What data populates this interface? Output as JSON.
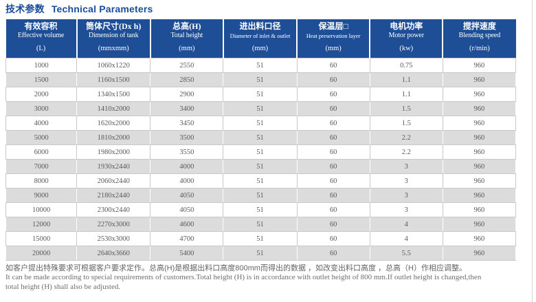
{
  "title": {
    "zh": "技术参数",
    "en": "Technical Parameters"
  },
  "table": {
    "columns": [
      {
        "zh": "有效容积",
        "en": "Effective volume",
        "unit": "(L)"
      },
      {
        "zh": "筒体尺寸(Dx h)",
        "en": "Dimension of tank",
        "unit": "(mmxmm)"
      },
      {
        "zh": "总高(H)",
        "en": "Total height",
        "unit": "(mm)"
      },
      {
        "zh": "进出料口径",
        "en": "Diameter of inlet & outlet",
        "unit": "(mm)"
      },
      {
        "zh": "保温层□",
        "en": "Heat preservation layer",
        "unit": "(mm)"
      },
      {
        "zh": "电机功率",
        "en": "Motor power",
        "unit": "(kw)"
      },
      {
        "zh": "搅拌速度",
        "en": "Blending speed",
        "unit": "(r/min)"
      }
    ],
    "rows": [
      [
        "1000",
        "1060x1220",
        "2550",
        "51",
        "60",
        "0.75",
        "960"
      ],
      [
        "1500",
        "1160x1500",
        "2850",
        "51",
        "60",
        "1.1",
        "960"
      ],
      [
        "2000",
        "1340x1500",
        "2900",
        "51",
        "60",
        "1.1",
        "960"
      ],
      [
        "3000",
        "1410x2000",
        "3400",
        "51",
        "60",
        "1.5",
        "960"
      ],
      [
        "4000",
        "1620x2000",
        "3450",
        "51",
        "60",
        "1.5",
        "960"
      ],
      [
        "5000",
        "1810x2000",
        "3500",
        "51",
        "60",
        "2.2",
        "960"
      ],
      [
        "6000",
        "1980x2000",
        "3550",
        "51",
        "60",
        "2.2",
        "960"
      ],
      [
        "7000",
        "1930x2440",
        "4000",
        "51",
        "60",
        "3",
        "960"
      ],
      [
        "8000",
        "2060x2440",
        "4000",
        "51",
        "60",
        "3",
        "960"
      ],
      [
        "9000",
        "2180x2440",
        "4050",
        "51",
        "60",
        "3",
        "960"
      ],
      [
        "10000",
        "2300x2440",
        "4050",
        "51",
        "60",
        "3",
        "960"
      ],
      [
        "12000",
        "2270x3000",
        "4600",
        "51",
        "60",
        "4",
        "960"
      ],
      [
        "15000",
        "2530x3000",
        "4700",
        "51",
        "60",
        "4",
        "960"
      ],
      [
        "20000",
        "2640x3660",
        "5400",
        "51",
        "60",
        "5.5",
        "960"
      ]
    ]
  },
  "notes": {
    "zh": "如客户提出特殊要求可根据客户要求定作。总高(H)是根据出料口高度800mm而得出的数据 ，如改变出料口高度 ，总高（H）作相应调整。",
    "en_line1": "It can be made according to special requirements of customers.Total height (H) is in accordance with outlet height of 800 mm.If outlet height is changed,then",
    "en_line2": "total height (H) shall also be adjusted."
  },
  "colors": {
    "header_bg": "#1d4e96",
    "title_text": "#1a4c9e",
    "row_alt_bg": "#dcdcdc",
    "cell_text": "#595959",
    "cell_border": "#c9c9c9",
    "note_text": "#666666"
  }
}
